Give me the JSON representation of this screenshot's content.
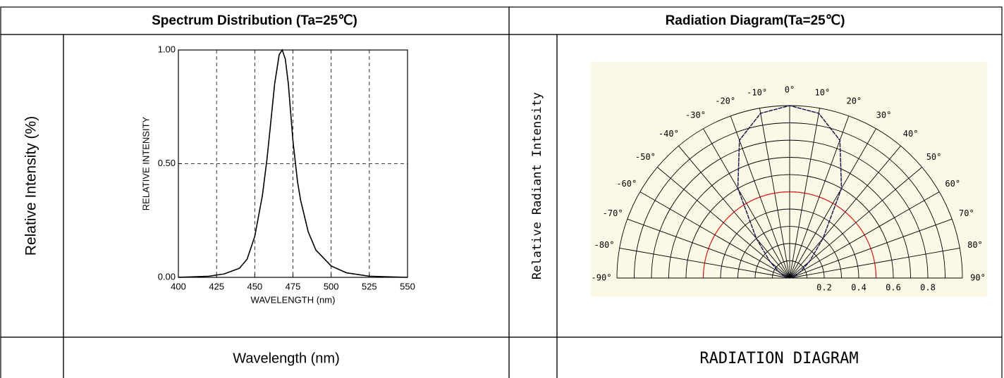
{
  "table": {
    "headers": [
      "Spectrum Distribution (Ta=25℃)",
      "Radiation Diagram(Ta=25℃)"
    ],
    "side_labels": [
      "Relative Intensity (%)",
      "Relative Radiant Intensity"
    ],
    "footers": [
      "Wavelength (nm)",
      "RADIATION DIAGRAM"
    ]
  },
  "chart_data": [
    {
      "type": "line",
      "x_label": "WAVELENGTH (nm)",
      "y_label": "RELATIVE INTENSITY",
      "x": [
        400,
        420,
        430,
        440,
        445,
        450,
        455,
        458,
        460,
        463,
        466,
        468,
        470,
        472,
        475,
        478,
        480,
        485,
        490,
        500,
        510,
        525,
        550
      ],
      "values": [
        0,
        0.005,
        0.015,
        0.04,
        0.08,
        0.18,
        0.36,
        0.52,
        0.65,
        0.85,
        0.98,
        1.0,
        0.96,
        0.85,
        0.6,
        0.42,
        0.34,
        0.2,
        0.12,
        0.05,
        0.02,
        0.005,
        0
      ],
      "color": "#000000",
      "grid": true,
      "xlim": [
        400,
        550
      ],
      "xticks": [
        400,
        425,
        450,
        475,
        500,
        525,
        550
      ],
      "ylim": [
        0,
        1
      ],
      "yticks": [
        {
          "value": 0,
          "label": "0.00"
        },
        {
          "value": 0.5,
          "label": "0.50"
        },
        {
          "value": 1,
          "label": "1.00"
        }
      ]
    },
    {
      "type": "polar",
      "color": "#1a1a4a",
      "angles": [
        -90,
        -80,
        -70,
        -60,
        -50,
        -40,
        -30,
        -20,
        -10,
        0,
        10,
        20,
        30,
        40,
        50,
        60,
        70,
        80,
        90
      ],
      "values": [
        0,
        0.01,
        0.03,
        0.07,
        0.15,
        0.3,
        0.6,
        0.85,
        0.97,
        1.0,
        0.97,
        0.85,
        0.6,
        0.3,
        0.15,
        0.07,
        0.03,
        0.01,
        0
      ],
      "angle_ticks": [
        {
          "value": -90,
          "label": "-90°"
        },
        {
          "value": -80,
          "label": "-80°"
        },
        {
          "value": -70,
          "label": "-70°"
        },
        {
          "value": -60,
          "label": "-60°"
        },
        {
          "value": -50,
          "label": "-50°"
        },
        {
          "value": -40,
          "label": "-40°"
        },
        {
          "value": -30,
          "label": "-30°"
        },
        {
          "value": -20,
          "label": "-20°"
        },
        {
          "value": -10,
          "label": "-10°"
        },
        {
          "value": 0,
          "label": "0°"
        },
        {
          "value": 10,
          "label": "10°"
        },
        {
          "value": 20,
          "label": "20°"
        },
        {
          "value": 30,
          "label": "30°"
        },
        {
          "value": 40,
          "label": "40°"
        },
        {
          "value": 50,
          "label": "50°"
        },
        {
          "value": 60,
          "label": "60°"
        },
        {
          "value": 70,
          "label": "70°"
        },
        {
          "value": 80,
          "label": "80°"
        },
        {
          "value": 90,
          "label": "90°"
        }
      ],
      "rlim": [
        0,
        1
      ],
      "rticks": [
        0.2,
        0.4,
        0.6,
        0.8
      ],
      "rgrid": [
        0.1,
        0.2,
        0.3,
        0.4,
        0.5,
        0.6,
        0.7,
        0.8,
        0.9,
        1.0
      ],
      "half_intensity_ring": 0.5
    }
  ]
}
